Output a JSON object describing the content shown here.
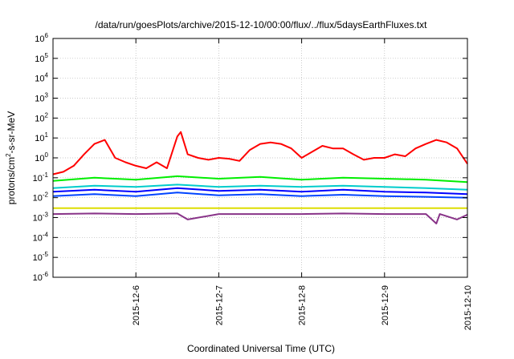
{
  "chart_data": {
    "type": "line",
    "title": "/data/run/goesPlots/archive/2015-12-10/00:00/flux/../flux/5daysEarthFluxes.txt",
    "xlabel": "Coordinated Universal Time (UTC)",
    "ylabel": {
      "prefix": "protons/cm",
      "sup": "2",
      "suffix": "-s-sr-MeV"
    },
    "y_scale": "log",
    "ylim": [
      1e-06,
      1000000.0
    ],
    "yticks": [
      {
        "base": "10",
        "exp": "-6"
      },
      {
        "base": "10",
        "exp": "-5"
      },
      {
        "base": "10",
        "exp": "-4"
      },
      {
        "base": "10",
        "exp": "-3"
      },
      {
        "base": "10",
        "exp": "-2"
      },
      {
        "base": "10",
        "exp": "-1"
      },
      {
        "base": "10",
        "exp": "0"
      },
      {
        "base": "10",
        "exp": "1"
      },
      {
        "base": "10",
        "exp": "2"
      },
      {
        "base": "10",
        "exp": "3"
      },
      {
        "base": "10",
        "exp": "4"
      },
      {
        "base": "10",
        "exp": "5"
      },
      {
        "base": "10",
        "exp": "6"
      }
    ],
    "xlim": [
      "2015-12-05 00:00",
      "2015-12-10 00:00"
    ],
    "xticks": [
      "2015-12-6",
      "2015-12-7",
      "2015-12-8",
      "2015-12-9",
      "2015-12-10"
    ],
    "grid": true,
    "series": [
      {
        "color": "#ff0000",
        "x": [
          "2015-12-05 00:00",
          "2015-12-05 03:00",
          "2015-12-05 06:00",
          "2015-12-05 09:00",
          "2015-12-05 12:00",
          "2015-12-05 15:00",
          "2015-12-05 18:00",
          "2015-12-05 21:00",
          "2015-12-06 00:00",
          "2015-12-06 03:00",
          "2015-12-06 06:00",
          "2015-12-06 09:00",
          "2015-12-06 12:00",
          "2015-12-06 13:00",
          "2015-12-06 15:00",
          "2015-12-06 18:00",
          "2015-12-06 21:00",
          "2015-12-07 00:00",
          "2015-12-07 03:00",
          "2015-12-07 06:00",
          "2015-12-07 09:00",
          "2015-12-07 12:00",
          "2015-12-07 15:00",
          "2015-12-07 18:00",
          "2015-12-07 21:00",
          "2015-12-08 00:00",
          "2015-12-08 03:00",
          "2015-12-08 06:00",
          "2015-12-08 09:00",
          "2015-12-08 12:00",
          "2015-12-08 15:00",
          "2015-12-08 18:00",
          "2015-12-08 21:00",
          "2015-12-09 00:00",
          "2015-12-09 03:00",
          "2015-12-09 06:00",
          "2015-12-09 09:00",
          "2015-12-09 12:00",
          "2015-12-09 15:00",
          "2015-12-09 18:00",
          "2015-12-09 21:00",
          "2015-12-10 00:00"
        ],
        "y": [
          0.15,
          0.2,
          0.4,
          1.5,
          5,
          8,
          1,
          0.6,
          0.4,
          0.3,
          0.6,
          0.3,
          12,
          20,
          1.5,
          1,
          0.8,
          1,
          0.9,
          0.7,
          2.5,
          5,
          6,
          5,
          3,
          1,
          2,
          4,
          3,
          3,
          1.5,
          0.8,
          1,
          1,
          1.5,
          1.2,
          3,
          5,
          8,
          6,
          3,
          0.5
        ]
      },
      {
        "color": "#00ee00",
        "x": [
          "2015-12-05 00:00",
          "2015-12-05 12:00",
          "2015-12-06 00:00",
          "2015-12-06 12:00",
          "2015-12-07 00:00",
          "2015-12-07 12:00",
          "2015-12-08 00:00",
          "2015-12-08 12:00",
          "2015-12-09 00:00",
          "2015-12-09 12:00",
          "2015-12-10 00:00"
        ],
        "y": [
          0.07,
          0.1,
          0.08,
          0.12,
          0.09,
          0.11,
          0.08,
          0.1,
          0.09,
          0.08,
          0.06
        ]
      },
      {
        "color": "#00cccc",
        "x": [
          "2015-12-05 00:00",
          "2015-12-05 12:00",
          "2015-12-06 00:00",
          "2015-12-06 12:00",
          "2015-12-07 00:00",
          "2015-12-07 12:00",
          "2015-12-08 00:00",
          "2015-12-08 12:00",
          "2015-12-09 00:00",
          "2015-12-09 12:00",
          "2015-12-10 00:00"
        ],
        "y": [
          0.03,
          0.04,
          0.035,
          0.045,
          0.035,
          0.04,
          0.035,
          0.04,
          0.035,
          0.03,
          0.025
        ]
      },
      {
        "color": "#0000ff",
        "x": [
          "2015-12-05 00:00",
          "2015-12-05 12:00",
          "2015-12-06 00:00",
          "2015-12-06 12:00",
          "2015-12-07 00:00",
          "2015-12-07 12:00",
          "2015-12-08 00:00",
          "2015-12-08 12:00",
          "2015-12-09 00:00",
          "2015-12-09 12:00",
          "2015-12-10 00:00"
        ],
        "y": [
          0.02,
          0.025,
          0.02,
          0.03,
          0.022,
          0.025,
          0.02,
          0.025,
          0.02,
          0.018,
          0.015
        ]
      },
      {
        "color": "#0044ff",
        "x": [
          "2015-12-05 00:00",
          "2015-12-05 12:00",
          "2015-12-06 00:00",
          "2015-12-06 12:00",
          "2015-12-07 00:00",
          "2015-12-07 12:00",
          "2015-12-08 00:00",
          "2015-12-08 12:00",
          "2015-12-09 00:00",
          "2015-12-09 12:00",
          "2015-12-10 00:00"
        ],
        "y": [
          0.012,
          0.015,
          0.012,
          0.018,
          0.013,
          0.015,
          0.012,
          0.014,
          0.012,
          0.011,
          0.01
        ]
      },
      {
        "color": "#dddd00",
        "x": [
          "2015-12-05 00:00",
          "2015-12-06 00:00",
          "2015-12-07 00:00",
          "2015-12-08 00:00",
          "2015-12-09 00:00",
          "2015-12-10 00:00"
        ],
        "y": [
          0.003,
          0.003,
          0.003,
          0.003,
          0.003,
          0.003
        ]
      },
      {
        "color": "#883388",
        "x": [
          "2015-12-05 00:00",
          "2015-12-05 12:00",
          "2015-12-06 00:00",
          "2015-12-06 12:00",
          "2015-12-06 15:00",
          "2015-12-07 00:00",
          "2015-12-08 00:00",
          "2015-12-08 12:00",
          "2015-12-09 00:00",
          "2015-12-09 12:00",
          "2015-12-09 15:00",
          "2015-12-09 16:00",
          "2015-12-09 21:00",
          "2015-12-10 00:00"
        ],
        "y": [
          0.0015,
          0.0016,
          0.0015,
          0.0016,
          0.0008,
          0.0015,
          0.0015,
          0.0016,
          0.0015,
          0.0015,
          0.0005,
          0.0015,
          0.0008,
          0.0014
        ]
      }
    ]
  }
}
